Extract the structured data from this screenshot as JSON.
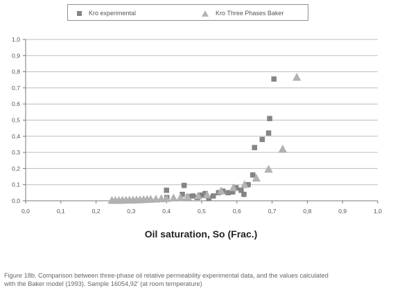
{
  "chart_data": {
    "type": "scatter",
    "x_axis": {
      "label": "Oil saturation, So (Frac.)",
      "ticks": [
        "0,0",
        "0,1",
        "0,2",
        "0,3",
        "0,4",
        "0,5",
        "0,6",
        "0,7",
        "0,8",
        "0,9",
        "1,0"
      ],
      "range": [
        0,
        1
      ]
    },
    "y_axis": {
      "ticks": [
        "0,0",
        "0,1",
        "0,2",
        "0,3",
        "0,4",
        "0,5",
        "0,6",
        "0,7",
        "0,8",
        "0,9",
        "1,0"
      ],
      "range": [
        0,
        1
      ]
    },
    "grid": true,
    "legend_placement": "top",
    "series": [
      {
        "name": "Kro experimental",
        "marker": "square",
        "color": "#858585",
        "points": [
          {
            "x": 0.4,
            "y": 0.065
          },
          {
            "x": 0.401,
            "y": 0.02
          },
          {
            "x": 0.445,
            "y": 0.04
          },
          {
            "x": 0.45,
            "y": 0.095
          },
          {
            "x": 0.462,
            "y": 0.025
          },
          {
            "x": 0.475,
            "y": 0.03
          },
          {
            "x": 0.488,
            "y": 0.02
          },
          {
            "x": 0.5,
            "y": 0.035
          },
          {
            "x": 0.51,
            "y": 0.045
          },
          {
            "x": 0.52,
            "y": 0.015
          },
          {
            "x": 0.533,
            "y": 0.03
          },
          {
            "x": 0.548,
            "y": 0.05
          },
          {
            "x": 0.56,
            "y": 0.06
          },
          {
            "x": 0.575,
            "y": 0.05
          },
          {
            "x": 0.588,
            "y": 0.055
          },
          {
            "x": 0.598,
            "y": 0.08
          },
          {
            "x": 0.612,
            "y": 0.065
          },
          {
            "x": 0.62,
            "y": 0.04
          },
          {
            "x": 0.632,
            "y": 0.1
          },
          {
            "x": 0.645,
            "y": 0.16
          },
          {
            "x": 0.65,
            "y": 0.33
          },
          {
            "x": 0.672,
            "y": 0.38
          },
          {
            "x": 0.69,
            "y": 0.42
          },
          {
            "x": 0.693,
            "y": 0.51
          },
          {
            "x": 0.705,
            "y": 0.755
          }
        ]
      },
      {
        "name": "Kro Three Phases Baker",
        "marker": "triangle",
        "color": "#b3b3b3",
        "points": [
          {
            "x": 0.245,
            "y": 0.002
          },
          {
            "x": 0.255,
            "y": 0.002
          },
          {
            "x": 0.265,
            "y": 0.002
          },
          {
            "x": 0.275,
            "y": 0.003
          },
          {
            "x": 0.285,
            "y": 0.003
          },
          {
            "x": 0.295,
            "y": 0.004
          },
          {
            "x": 0.305,
            "y": 0.004
          },
          {
            "x": 0.315,
            "y": 0.005
          },
          {
            "x": 0.325,
            "y": 0.006
          },
          {
            "x": 0.335,
            "y": 0.007
          },
          {
            "x": 0.345,
            "y": 0.008
          },
          {
            "x": 0.355,
            "y": 0.009
          },
          {
            "x": 0.37,
            "y": 0.01
          },
          {
            "x": 0.385,
            "y": 0.012
          },
          {
            "x": 0.4,
            "y": 0.014
          },
          {
            "x": 0.42,
            "y": 0.017
          },
          {
            "x": 0.44,
            "y": 0.02
          },
          {
            "x": 0.46,
            "y": 0.024
          },
          {
            "x": 0.49,
            "y": 0.03
          },
          {
            "x": 0.515,
            "y": 0.036
          },
          {
            "x": 0.555,
            "y": 0.06
          },
          {
            "x": 0.59,
            "y": 0.08
          },
          {
            "x": 0.622,
            "y": 0.1
          },
          {
            "x": 0.655,
            "y": 0.14
          },
          {
            "x": 0.69,
            "y": 0.195
          },
          {
            "x": 0.73,
            "y": 0.32
          },
          {
            "x": 0.77,
            "y": 0.765
          }
        ]
      }
    ]
  },
  "caption": {
    "line1": "Figure 18b. Comparison between three-phase oil relative permeability experimental data, and the values calculated",
    "line2": "with the Baker model  (1993). Sample 16054,92’ (at room temperature)"
  }
}
